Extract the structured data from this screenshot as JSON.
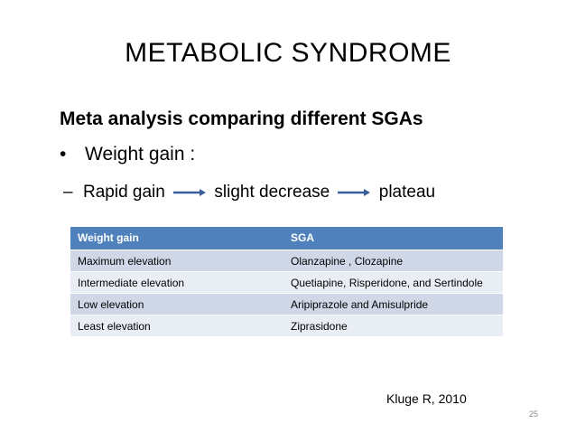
{
  "slide": {
    "title": "METABOLIC SYNDROME",
    "subtitle": "Meta analysis comparing different SGAs",
    "bullet": "Weight gain :",
    "bullet_marker": "•",
    "subbullet_marker": "–",
    "progression": {
      "step1": "Rapid gain",
      "step2": "slight decrease",
      "step3": "plateau"
    },
    "table": {
      "headers": [
        "Weight gain",
        "SGA"
      ],
      "rows": [
        [
          "Maximum elevation",
          "Olanzapine , Clozapine"
        ],
        [
          "Intermediate elevation",
          "Quetiapine, Risperidone, and Sertindole"
        ],
        [
          "Low elevation",
          "Aripiprazole and Amisulpride"
        ],
        [
          "Least elevation",
          "Ziprasidone"
        ]
      ]
    },
    "citation": "Kluge R, 2010",
    "page_number": "25",
    "colors": {
      "header_bg": "#4f81bd",
      "row_dark": "#d0d8e8",
      "row_light": "#e9edf4",
      "arrow": "#3a5f9a"
    }
  }
}
